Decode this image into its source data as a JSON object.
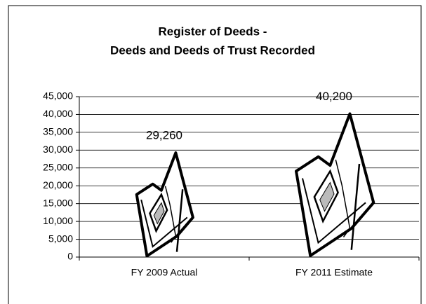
{
  "chart_data": {
    "type": "pictogram_bar",
    "title": "Register of Deeds -",
    "subtitle": "Deeds and Deeds of Trust Recorded",
    "categories": [
      "FY 2009 Actual",
      "FY 2011 Estimate"
    ],
    "values": [
      29260,
      40200
    ],
    "value_labels": [
      "29,260",
      "40,200"
    ],
    "color": "#000000",
    "ylim": [
      0,
      45000
    ],
    "yticks": [
      {
        "value": 0,
        "label": "0"
      },
      {
        "value": 5000,
        "label": "5,000"
      },
      {
        "value": 10000,
        "label": "10,000"
      },
      {
        "value": 15000,
        "label": "15,000"
      },
      {
        "value": 20000,
        "label": "20,000"
      },
      {
        "value": 25000,
        "label": "25,000"
      },
      {
        "value": 30000,
        "label": "30,000"
      },
      {
        "value": 35000,
        "label": "35,000"
      },
      {
        "value": 40000,
        "label": "40,000"
      },
      {
        "value": 45000,
        "label": "45,000"
      }
    ],
    "grid": true
  }
}
